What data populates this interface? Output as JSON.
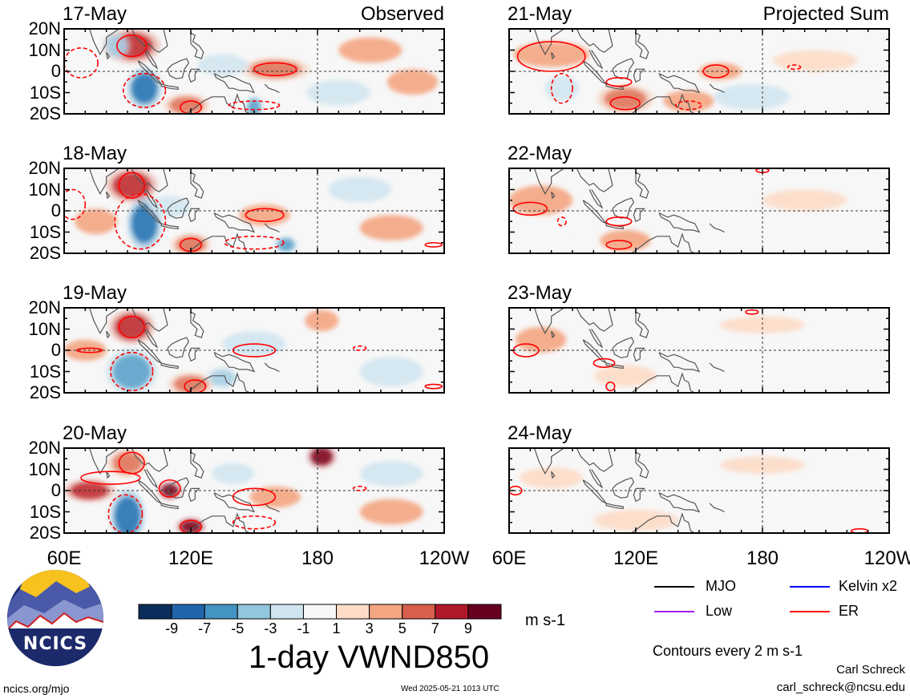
{
  "chart_data": [
    {
      "type": "heatmap",
      "title": "17-May",
      "corner_label": "Observed",
      "region": "left",
      "row": 0,
      "x_ticks": [
        "60E",
        "120E",
        "180",
        "120W"
      ],
      "y_ticks": [
        "20N",
        "10N",
        "0",
        "10S",
        "20S"
      ],
      "xlim": [
        60,
        240
      ],
      "ylim": [
        -20,
        20
      ],
      "anomalies": [
        {
          "lon": 92,
          "lat": 12,
          "value": 7,
          "rx": 10,
          "ry": 6
        },
        {
          "lon": 98,
          "lat": -8,
          "value": -9,
          "rx": 6,
          "ry": 7
        },
        {
          "lon": 85,
          "lat": 12,
          "value": -5,
          "rx": 5,
          "ry": 5
        },
        {
          "lon": 160,
          "lat": 1,
          "value": 5,
          "rx": 12,
          "ry": 4
        },
        {
          "lon": 150,
          "lat": -17,
          "value": -7,
          "rx": 3,
          "ry": 4
        },
        {
          "lon": 118,
          "lat": -16,
          "value": 5,
          "rx": 8,
          "ry": 4
        },
        {
          "lon": 135,
          "lat": 3,
          "value": -3,
          "rx": 12,
          "ry": 5
        },
        {
          "lon": 205,
          "lat": 10,
          "value": 3,
          "rx": 15,
          "ry": 6
        },
        {
          "lon": 190,
          "lat": -10,
          "value": -3,
          "rx": 15,
          "ry": 6
        },
        {
          "lon": 225,
          "lat": -5,
          "value": 3,
          "rx": 12,
          "ry": 6
        }
      ],
      "contours": [
        {
          "series": "ER",
          "dashed": false,
          "lon": 92,
          "lat": 12,
          "rx": 7,
          "ry": 5
        },
        {
          "series": "ER",
          "dashed": true,
          "lon": 98,
          "lat": -9,
          "rx": 10,
          "ry": 8
        },
        {
          "series": "ER",
          "dashed": true,
          "lon": 68,
          "lat": 4,
          "rx": 8,
          "ry": 7
        },
        {
          "series": "ER",
          "dashed": false,
          "lon": 160,
          "lat": 1,
          "rx": 10,
          "ry": 3
        },
        {
          "series": "ER",
          "dashed": false,
          "lon": 120,
          "lat": -17,
          "rx": 5,
          "ry": 3
        },
        {
          "series": "ER",
          "dashed": true,
          "lon": 150,
          "lat": -16,
          "rx": 12,
          "ry": 2
        }
      ]
    },
    {
      "type": "heatmap",
      "title": "18-May",
      "corner_label": "",
      "region": "left",
      "row": 1,
      "x_ticks": [
        "60E",
        "120E",
        "180",
        "120W"
      ],
      "y_ticks": [
        "20N",
        "10N",
        "0",
        "10S",
        "20S"
      ],
      "xlim": [
        60,
        240
      ],
      "ylim": [
        -20,
        20
      ],
      "anomalies": [
        {
          "lon": 92,
          "lat": 12,
          "value": 7,
          "rx": 9,
          "ry": 6
        },
        {
          "lon": 98,
          "lat": -6,
          "value": -9,
          "rx": 6,
          "ry": 9
        },
        {
          "lon": 110,
          "lat": 2,
          "value": -3,
          "rx": 10,
          "ry": 5
        },
        {
          "lon": 155,
          "lat": -2,
          "value": 3,
          "rx": 12,
          "ry": 5
        },
        {
          "lon": 165,
          "lat": -16,
          "value": -7,
          "rx": 4,
          "ry": 3
        },
        {
          "lon": 120,
          "lat": -16,
          "value": 5,
          "rx": 7,
          "ry": 4
        },
        {
          "lon": 200,
          "lat": 10,
          "value": -3,
          "rx": 15,
          "ry": 6
        },
        {
          "lon": 215,
          "lat": -8,
          "value": 3,
          "rx": 15,
          "ry": 6
        },
        {
          "lon": 75,
          "lat": -5,
          "value": 3,
          "rx": 10,
          "ry": 6
        }
      ],
      "contours": [
        {
          "series": "ER",
          "dashed": false,
          "lon": 92,
          "lat": 12,
          "rx": 6,
          "ry": 6
        },
        {
          "series": "ER",
          "dashed": true,
          "lon": 96,
          "lat": -5,
          "rx": 12,
          "ry": 13
        },
        {
          "series": "ER",
          "dashed": true,
          "lon": 64,
          "lat": 3,
          "rx": 6,
          "ry": 7
        },
        {
          "series": "ER",
          "dashed": false,
          "lon": 155,
          "lat": -2,
          "rx": 9,
          "ry": 3
        },
        {
          "series": "ER",
          "dashed": false,
          "lon": 120,
          "lat": -16,
          "rx": 5,
          "ry": 3
        },
        {
          "series": "ER",
          "dashed": true,
          "lon": 150,
          "lat": -15,
          "rx": 14,
          "ry": 3
        },
        {
          "series": "ER",
          "dashed": false,
          "lon": 235,
          "lat": -16,
          "rx": 4,
          "ry": 1
        }
      ]
    },
    {
      "type": "heatmap",
      "title": "19-May",
      "corner_label": "",
      "region": "left",
      "row": 2,
      "x_ticks": [
        "60E",
        "120E",
        "180",
        "120W"
      ],
      "y_ticks": [
        "20N",
        "10N",
        "0",
        "10S",
        "20S"
      ],
      "xlim": [
        60,
        240
      ],
      "ylim": [
        -20,
        20
      ],
      "anomalies": [
        {
          "lon": 92,
          "lat": 11,
          "value": 7,
          "rx": 8,
          "ry": 6
        },
        {
          "lon": 92,
          "lat": -10,
          "value": -7,
          "rx": 9,
          "ry": 8
        },
        {
          "lon": 120,
          "lat": -16,
          "value": 5,
          "rx": 8,
          "ry": 4
        },
        {
          "lon": 135,
          "lat": -13,
          "value": -5,
          "rx": 6,
          "ry": 4
        },
        {
          "lon": 182,
          "lat": 14,
          "value": 3,
          "rx": 8,
          "ry": 5
        },
        {
          "lon": 70,
          "lat": 0,
          "value": 3,
          "rx": 10,
          "ry": 5
        },
        {
          "lon": 150,
          "lat": 3,
          "value": -3,
          "rx": 15,
          "ry": 6
        },
        {
          "lon": 215,
          "lat": -10,
          "value": -3,
          "rx": 15,
          "ry": 7
        }
      ],
      "contours": [
        {
          "series": "ER",
          "dashed": false,
          "lon": 92,
          "lat": 11,
          "rx": 6,
          "ry": 5
        },
        {
          "series": "ER",
          "dashed": true,
          "lon": 92,
          "lat": -10,
          "rx": 10,
          "ry": 9
        },
        {
          "series": "ER",
          "dashed": false,
          "lon": 72,
          "lat": 0,
          "rx": 6,
          "ry": 1
        },
        {
          "series": "ER",
          "dashed": false,
          "lon": 150,
          "lat": 0,
          "rx": 10,
          "ry": 3
        },
        {
          "series": "ER",
          "dashed": true,
          "lon": 200,
          "lat": 1,
          "rx": 3,
          "ry": 1
        },
        {
          "series": "ER",
          "dashed": false,
          "lon": 122,
          "lat": -17,
          "rx": 5,
          "ry": 3
        },
        {
          "series": "ER",
          "dashed": false,
          "lon": 235,
          "lat": -17,
          "rx": 4,
          "ry": 1
        }
      ]
    },
    {
      "type": "heatmap",
      "title": "20-May",
      "corner_label": "",
      "region": "left",
      "row": 3,
      "x_ticks": [
        "60E",
        "120E",
        "180",
        "120W"
      ],
      "y_ticks": [
        "20N",
        "10N",
        "0",
        "10S",
        "20S"
      ],
      "xlim": [
        60,
        240
      ],
      "ylim": [
        -20,
        20
      ],
      "anomalies": [
        {
          "lon": 90,
          "lat": -12,
          "value": -9,
          "rx": 6,
          "ry": 9
        },
        {
          "lon": 72,
          "lat": 0,
          "value": 7,
          "rx": 9,
          "ry": 4
        },
        {
          "lon": 90,
          "lat": 13,
          "value": 5,
          "rx": 7,
          "ry": 5
        },
        {
          "lon": 110,
          "lat": 0,
          "value": 9,
          "rx": 4,
          "ry": 3
        },
        {
          "lon": 120,
          "lat": -17,
          "value": 9,
          "rx": 5,
          "ry": 3
        },
        {
          "lon": 182,
          "lat": 16,
          "value": 9,
          "rx": 5,
          "ry": 4
        },
        {
          "lon": 160,
          "lat": -3,
          "value": 3,
          "rx": 12,
          "ry": 5
        },
        {
          "lon": 140,
          "lat": 8,
          "value": -3,
          "rx": 10,
          "ry": 5
        },
        {
          "lon": 215,
          "lat": 8,
          "value": -3,
          "rx": 15,
          "ry": 6
        },
        {
          "lon": 215,
          "lat": -10,
          "value": 3,
          "rx": 15,
          "ry": 6
        }
      ],
      "contours": [
        {
          "series": "ER",
          "dashed": false,
          "lon": 82,
          "lat": 6,
          "rx": 14,
          "ry": 3
        },
        {
          "series": "ER",
          "dashed": false,
          "lon": 92,
          "lat": 13,
          "rx": 6,
          "ry": 5
        },
        {
          "series": "ER",
          "dashed": true,
          "lon": 89,
          "lat": -11,
          "rx": 8,
          "ry": 9
        },
        {
          "series": "ER",
          "dashed": false,
          "lon": 110,
          "lat": 1,
          "rx": 5,
          "ry": 4
        },
        {
          "series": "ER",
          "dashed": false,
          "lon": 150,
          "lat": -3,
          "rx": 10,
          "ry": 4
        },
        {
          "series": "ER",
          "dashed": true,
          "lon": 200,
          "lat": 1,
          "rx": 3,
          "ry": 1
        },
        {
          "series": "ER",
          "dashed": false,
          "lon": 120,
          "lat": -17,
          "rx": 5,
          "ry": 3
        },
        {
          "series": "ER",
          "dashed": true,
          "lon": 150,
          "lat": -15,
          "rx": 10,
          "ry": 3
        }
      ]
    },
    {
      "type": "heatmap",
      "title": "21-May",
      "corner_label": "Projected Sum",
      "region": "right",
      "row": 0,
      "x_ticks": [
        "60E",
        "120E",
        "180",
        "120W"
      ],
      "y_ticks": [],
      "xlim": [
        60,
        240
      ],
      "ylim": [
        -20,
        20
      ],
      "anomalies": [
        {
          "lon": 80,
          "lat": 8,
          "value": 3,
          "rx": 18,
          "ry": 6
        },
        {
          "lon": 85,
          "lat": -8,
          "value": -3,
          "rx": 8,
          "ry": 6
        },
        {
          "lon": 115,
          "lat": -13,
          "value": 5,
          "rx": 10,
          "ry": 5
        },
        {
          "lon": 145,
          "lat": -14,
          "value": 3,
          "rx": 12,
          "ry": 5
        },
        {
          "lon": 160,
          "lat": 0,
          "value": 3,
          "rx": 10,
          "ry": 4
        },
        {
          "lon": 175,
          "lat": -12,
          "value": -3,
          "rx": 18,
          "ry": 6
        },
        {
          "lon": 205,
          "lat": 5,
          "value": 1,
          "rx": 20,
          "ry": 5
        }
      ],
      "contours": [
        {
          "series": "ER",
          "dashed": false,
          "lon": 80,
          "lat": 7,
          "rx": 16,
          "ry": 7
        },
        {
          "series": "ER",
          "dashed": true,
          "lon": 85,
          "lat": -8,
          "rx": 5,
          "ry": 7
        },
        {
          "series": "ER",
          "dashed": false,
          "lon": 112,
          "lat": -5,
          "rx": 6,
          "ry": 2
        },
        {
          "series": "ER",
          "dashed": false,
          "lon": 115,
          "lat": -15,
          "rx": 7,
          "ry": 3
        },
        {
          "series": "ER",
          "dashed": false,
          "lon": 158,
          "lat": 0,
          "rx": 6,
          "ry": 3
        },
        {
          "series": "ER",
          "dashed": true,
          "lon": 145,
          "lat": -16,
          "rx": 6,
          "ry": 2
        },
        {
          "series": "ER",
          "dashed": true,
          "lon": 195,
          "lat": 2,
          "rx": 3,
          "ry": 1
        }
      ]
    },
    {
      "type": "heatmap",
      "title": "22-May",
      "corner_label": "",
      "region": "right",
      "row": 1,
      "x_ticks": [
        "60E",
        "120E",
        "180",
        "120W"
      ],
      "y_ticks": [],
      "xlim": [
        60,
        240
      ],
      "ylim": [
        -20,
        20
      ],
      "anomalies": [
        {
          "lon": 75,
          "lat": 5,
          "value": 3,
          "rx": 15,
          "ry": 7
        },
        {
          "lon": 115,
          "lat": -14,
          "value": 3,
          "rx": 12,
          "ry": 5
        },
        {
          "lon": 90,
          "lat": -5,
          "value": -1,
          "rx": 10,
          "ry": 5
        },
        {
          "lon": 175,
          "lat": -12,
          "value": -1,
          "rx": 18,
          "ry": 6
        },
        {
          "lon": 200,
          "lat": 5,
          "value": 1,
          "rx": 20,
          "ry": 5
        }
      ],
      "contours": [
        {
          "series": "ER",
          "dashed": false,
          "lon": 70,
          "lat": 1,
          "rx": 8,
          "ry": 3
        },
        {
          "series": "ER",
          "dashed": true,
          "lon": 85,
          "lat": -5,
          "rx": 2,
          "ry": 2
        },
        {
          "series": "ER",
          "dashed": false,
          "lon": 112,
          "lat": -5,
          "rx": 6,
          "ry": 2
        },
        {
          "series": "ER",
          "dashed": false,
          "lon": 112,
          "lat": -16,
          "rx": 6,
          "ry": 2
        },
        {
          "series": "ER",
          "dashed": false,
          "lon": 180,
          "lat": 19,
          "rx": 3,
          "ry": 1
        }
      ]
    },
    {
      "type": "heatmap",
      "title": "23-May",
      "corner_label": "",
      "region": "right",
      "row": 2,
      "x_ticks": [
        "60E",
        "120E",
        "180",
        "120W"
      ],
      "y_ticks": [],
      "xlim": [
        60,
        240
      ],
      "ylim": [
        -20,
        20
      ],
      "anomalies": [
        {
          "lon": 75,
          "lat": 5,
          "value": 3,
          "rx": 12,
          "ry": 6
        },
        {
          "lon": 115,
          "lat": -12,
          "value": 1,
          "rx": 15,
          "ry": 5
        },
        {
          "lon": 180,
          "lat": 12,
          "value": 1,
          "rx": 20,
          "ry": 4
        },
        {
          "lon": 160,
          "lat": -10,
          "value": -1,
          "rx": 18,
          "ry": 5
        }
      ],
      "contours": [
        {
          "series": "ER",
          "dashed": false,
          "lon": 68,
          "lat": 0,
          "rx": 6,
          "ry": 3
        },
        {
          "series": "ER",
          "dashed": false,
          "lon": 105,
          "lat": -6,
          "rx": 5,
          "ry": 2
        },
        {
          "series": "ER",
          "dashed": false,
          "lon": 108,
          "lat": -17,
          "rx": 2,
          "ry": 2
        },
        {
          "series": "ER",
          "dashed": false,
          "lon": 175,
          "lat": 18,
          "rx": 3,
          "ry": 1
        }
      ]
    },
    {
      "type": "heatmap",
      "title": "24-May",
      "corner_label": "",
      "region": "right",
      "row": 3,
      "x_ticks": [
        "60E",
        "120E",
        "180",
        "120W"
      ],
      "y_ticks": [],
      "xlim": [
        60,
        240
      ],
      "ylim": [
        -20,
        20
      ],
      "anomalies": [
        {
          "lon": 80,
          "lat": 6,
          "value": 1,
          "rx": 15,
          "ry": 5
        },
        {
          "lon": 120,
          "lat": -14,
          "value": 1,
          "rx": 20,
          "ry": 5
        },
        {
          "lon": 180,
          "lat": 12,
          "value": 1,
          "rx": 20,
          "ry": 4
        },
        {
          "lon": 100,
          "lat": -2,
          "value": -1,
          "rx": 12,
          "ry": 4
        }
      ],
      "contours": [
        {
          "series": "ER",
          "dashed": false,
          "lon": 63,
          "lat": 0,
          "rx": 3,
          "ry": 2
        },
        {
          "series": "ER",
          "dashed": false,
          "lon": 226,
          "lat": -19,
          "rx": 4,
          "ry": 1
        }
      ]
    }
  ],
  "colorbar": {
    "levels": [
      -11,
      -9,
      -7,
      -5,
      -3,
      -1,
      1,
      3,
      5,
      7,
      9,
      11
    ],
    "tick_labels": [
      "-9",
      "-7",
      "-5",
      "-3",
      "-1",
      "1",
      "3",
      "5",
      "7",
      "9"
    ],
    "colors": [
      "#0a2e5c",
      "#2166ac",
      "#4393c3",
      "#92c5de",
      "#d1e5f0",
      "#f7f7f7",
      "#fddbc7",
      "#f4a582",
      "#d6604d",
      "#b2182b",
      "#67001f"
    ],
    "units": "m s-1"
  },
  "legend": {
    "items": [
      {
        "label": "MJO",
        "color": "#000000"
      },
      {
        "label": "Kelvin x2",
        "color": "#0000ff"
      },
      {
        "label": "Low",
        "color": "#a020f0"
      },
      {
        "label": "ER",
        "color": "#ff0000"
      }
    ],
    "contour_note": "Contours every 2 m s-1"
  },
  "main_title": "1-day VWND850",
  "credit": {
    "name": "Carl Schreck",
    "email": "carl_schreck@ncsu.edu"
  },
  "url": "ncics.org/mjo",
  "timestamp": "Wed 2025-05-21 1013 UTC",
  "logo": {
    "text": "NCICS",
    "bg": "#1c2a6b",
    "sun": "#f7c21e"
  }
}
